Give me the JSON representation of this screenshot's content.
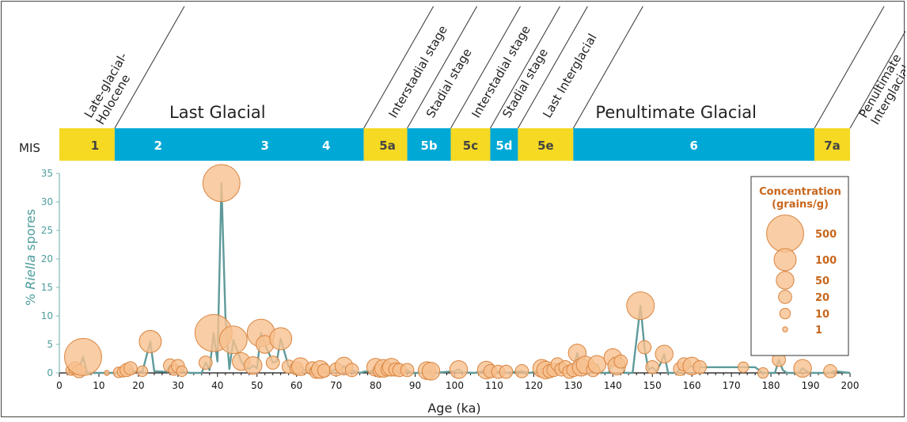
{
  "colors": {
    "glacial": "#00a8d6",
    "interglacial": "#f5d923",
    "curve": "#5f9a9a",
    "bubble_fill": "#f7c08e",
    "bubble_stroke": "#d9843f",
    "legend_text": "#c8661c"
  },
  "mis_label": "MIS",
  "header_labels": [
    {
      "text": "Last Glacial",
      "x": 40
    },
    {
      "text": "Penultimate Glacial",
      "x": 156
    }
  ],
  "diagonal_labels": [
    {
      "lines": [
        "Late-glacial-",
        "Holocene"
      ],
      "x": 8
    },
    {
      "lines": [
        "Interstadial stage"
      ],
      "x": 85
    },
    {
      "lines": [
        "Stadial stage"
      ],
      "x": 94.5
    },
    {
      "lines": [
        "Interstadial stage"
      ],
      "x": 106
    },
    {
      "lines": [
        "Stadial stage"
      ],
      "x": 113.8
    },
    {
      "lines": [
        "Last Interglacial"
      ],
      "x": 124
    },
    {
      "lines": [
        "Penultimate",
        "Interglacial"
      ],
      "x": 204
    }
  ],
  "mis_stages": [
    {
      "label": "1",
      "start": 0,
      "end": 14,
      "type": "interglacial",
      "text_at": 9
    },
    {
      "label": "2",
      "start": 14,
      "end": 77,
      "type": "glacial",
      "text_at": 25
    },
    {
      "label": "3",
      "start": 14,
      "end": 77,
      "type": "glacial",
      "text_at": 52,
      "no_rect": true
    },
    {
      "label": "4",
      "start": 14,
      "end": 77,
      "type": "glacial",
      "text_at": 67.5,
      "no_rect": true
    },
    {
      "label": "5a",
      "start": 77,
      "end": 88,
      "type": "interglacial",
      "text_at": 83
    },
    {
      "label": "5b",
      "start": 88,
      "end": 99,
      "type": "glacial",
      "text_at": 93.5
    },
    {
      "label": "5c",
      "start": 99,
      "end": 109,
      "type": "interglacial",
      "text_at": 104
    },
    {
      "label": "5d",
      "start": 109,
      "end": 116,
      "type": "glacial",
      "text_at": 112.5
    },
    {
      "label": "5e",
      "start": 116,
      "end": 130,
      "type": "interglacial",
      "text_at": 123
    },
    {
      "label": "6",
      "start": 130,
      "end": 191,
      "type": "glacial",
      "text_at": 160.5
    },
    {
      "label": "7a",
      "start": 191,
      "end": 200,
      "type": "interglacial",
      "text_at": 195.5
    }
  ],
  "chart_data": {
    "type": "line",
    "xlabel": "Age (ka)",
    "ylabel_prefix": "% ",
    "ylabel_italic": "Riella",
    "ylabel_suffix": " spores",
    "xlim": [
      0,
      200
    ],
    "ylim": [
      0,
      35
    ],
    "xticks": [
      0,
      10,
      20,
      30,
      40,
      50,
      60,
      70,
      80,
      90,
      100,
      110,
      120,
      130,
      140,
      150,
      160,
      170,
      180,
      190,
      200
    ],
    "yticks": [
      0,
      5,
      10,
      15,
      20,
      25,
      30,
      35
    ],
    "series": [
      {
        "points": [
          [
            4,
            0.2
          ],
          [
            5,
            0.8
          ],
          [
            6,
            2.8
          ],
          [
            7,
            0
          ],
          [
            11,
            0
          ],
          [
            15,
            0
          ],
          [
            16,
            0.1
          ],
          [
            17,
            0.3
          ],
          [
            18,
            0.8
          ],
          [
            19,
            0.2
          ],
          [
            21,
            0.2
          ],
          [
            23,
            5.5
          ],
          [
            24,
            0.3
          ],
          [
            27,
            0.2
          ],
          [
            28,
            1.3
          ],
          [
            29,
            0.5
          ],
          [
            30,
            1.2
          ],
          [
            31,
            0.3
          ],
          [
            33,
            0
          ],
          [
            36,
            0
          ],
          [
            37,
            1.8
          ],
          [
            38,
            0.5
          ],
          [
            39,
            7
          ],
          [
            40,
            2
          ],
          [
            41,
            33.3
          ],
          [
            42,
            10
          ],
          [
            43,
            0.7
          ],
          [
            44,
            5.8
          ],
          [
            46,
            2
          ],
          [
            47,
            1
          ],
          [
            48,
            0.7
          ],
          [
            49,
            1.3
          ],
          [
            50,
            0.8
          ],
          [
            51,
            7
          ],
          [
            52,
            5
          ],
          [
            53,
            3.5
          ],
          [
            54,
            1.8
          ],
          [
            55,
            2
          ],
          [
            56,
            6
          ],
          [
            57,
            3.5
          ],
          [
            58,
            1.1
          ],
          [
            59,
            0.8
          ],
          [
            60,
            0.8
          ],
          [
            61,
            1.1
          ],
          [
            62,
            0.4
          ],
          [
            63,
            0.5
          ],
          [
            64,
            0.8
          ],
          [
            65,
            0.2
          ],
          [
            66,
            0.6
          ],
          [
            67,
            0.4
          ],
          [
            68,
            0.2
          ],
          [
            69,
            0.4
          ],
          [
            70,
            0.6
          ],
          [
            71,
            0.4
          ],
          [
            72,
            1.2
          ],
          [
            73,
            0.3
          ],
          [
            74,
            0.5
          ],
          [
            75,
            0.2
          ],
          [
            76,
            0
          ],
          [
            77,
            0.2
          ],
          [
            78,
            0.3
          ],
          [
            79,
            0.3
          ],
          [
            80,
            1
          ],
          [
            81,
            0.4
          ],
          [
            82,
            0.8
          ],
          [
            83,
            0.6
          ],
          [
            84,
            1
          ],
          [
            85,
            0.6
          ],
          [
            86,
            0.5
          ],
          [
            87,
            0
          ],
          [
            88,
            0.5
          ],
          [
            89,
            0
          ],
          [
            92,
            0
          ],
          [
            93,
            0.4
          ],
          [
            94,
            0.3
          ],
          [
            95,
            0
          ],
          [
            100,
            0.3
          ],
          [
            101,
            0.6
          ],
          [
            102,
            0.1
          ],
          [
            105,
            0
          ],
          [
            107,
            0.3
          ],
          [
            108,
            0.5
          ],
          [
            109,
            0.3
          ],
          [
            110,
            0
          ],
          [
            111,
            0.2
          ],
          [
            112,
            0.2
          ],
          [
            113,
            0
          ],
          [
            117,
            0.3
          ],
          [
            118,
            0.1
          ],
          [
            119,
            0
          ],
          [
            121,
            0.3
          ],
          [
            122,
            0.8
          ],
          [
            123,
            0.5
          ],
          [
            124,
            0.3
          ],
          [
            125,
            0.5
          ],
          [
            126,
            1.5
          ],
          [
            127,
            0.6
          ],
          [
            128,
            1
          ],
          [
            129,
            0.2
          ],
          [
            130,
            0.5
          ],
          [
            131,
            3.5
          ],
          [
            132,
            1
          ],
          [
            133,
            1.4
          ],
          [
            134,
            0.1
          ],
          [
            135,
            0.5
          ],
          [
            136,
            1.5
          ],
          [
            137,
            0
          ],
          [
            139,
            0
          ],
          [
            140,
            2.7
          ],
          [
            141,
            1.2
          ],
          [
            142,
            2
          ],
          [
            143,
            0
          ],
          [
            145,
            0
          ],
          [
            147,
            11.8
          ],
          [
            148,
            4.5
          ],
          [
            149,
            0.5
          ],
          [
            150,
            1
          ],
          [
            151,
            0.3
          ],
          [
            152,
            1.5
          ],
          [
            153,
            3.3
          ],
          [
            154,
            0
          ],
          [
            156,
            0
          ],
          [
            157,
            0.7
          ],
          [
            158,
            1.5
          ],
          [
            159,
            1
          ],
          [
            160,
            1.2
          ],
          [
            161,
            1
          ],
          [
            162,
            1
          ],
          [
            173,
            1
          ],
          [
            176,
            1
          ],
          [
            178,
            0
          ],
          [
            181,
            0
          ],
          [
            182,
            2.3
          ],
          [
            183,
            0.5
          ],
          [
            184,
            0
          ],
          [
            187,
            0
          ],
          [
            188,
            0.8
          ],
          [
            189,
            0.3
          ],
          [
            190,
            0
          ],
          [
            195,
            0
          ],
          [
            196,
            0.3
          ],
          [
            200,
            0
          ]
        ]
      }
    ],
    "bubbles": [
      [
        3,
        0.5,
        10
      ],
      [
        4,
        0.8,
        20
      ],
      [
        5,
        0.3,
        20
      ],
      [
        6,
        2.8,
        500
      ],
      [
        12,
        0,
        1
      ],
      [
        15,
        0.1,
        10
      ],
      [
        16,
        0.2,
        10
      ],
      [
        17,
        0.5,
        20
      ],
      [
        18,
        0.8,
        20
      ],
      [
        21,
        0.3,
        10
      ],
      [
        23,
        5.5,
        100
      ],
      [
        28,
        1.3,
        20
      ],
      [
        29,
        0.5,
        10
      ],
      [
        30,
        1.2,
        20
      ],
      [
        31,
        0.3,
        10
      ],
      [
        37,
        1.8,
        20
      ],
      [
        39,
        7,
        500
      ],
      [
        41,
        33.3,
        500
      ],
      [
        44,
        5.8,
        200
      ],
      [
        46,
        2,
        50
      ],
      [
        49,
        1.3,
        50
      ],
      [
        51,
        7,
        200
      ],
      [
        52,
        5,
        50
      ],
      [
        54,
        1.8,
        20
      ],
      [
        56,
        6,
        100
      ],
      [
        58,
        1.1,
        20
      ],
      [
        60,
        0.8,
        20
      ],
      [
        61,
        1.1,
        50
      ],
      [
        64,
        0.8,
        20
      ],
      [
        65,
        0.2,
        20
      ],
      [
        66,
        0.6,
        50
      ],
      [
        67,
        0.4,
        20
      ],
      [
        70,
        0.6,
        20
      ],
      [
        72,
        1.2,
        50
      ],
      [
        74,
        0.5,
        20
      ],
      [
        80,
        1,
        50
      ],
      [
        81,
        0.4,
        20
      ],
      [
        82,
        0.8,
        50
      ],
      [
        83,
        0.6,
        20
      ],
      [
        84,
        1,
        50
      ],
      [
        85,
        0.6,
        20
      ],
      [
        86,
        0.5,
        20
      ],
      [
        88,
        0.5,
        20
      ],
      [
        93,
        0.4,
        50
      ],
      [
        94,
        0.3,
        50
      ],
      [
        101,
        0.6,
        50
      ],
      [
        108,
        0.5,
        50
      ],
      [
        109,
        0.3,
        20
      ],
      [
        111,
        0.2,
        20
      ],
      [
        113,
        0.2,
        20
      ],
      [
        117,
        0.3,
        20
      ],
      [
        122,
        0.8,
        50
      ],
      [
        123,
        0.5,
        50
      ],
      [
        124,
        0.3,
        20
      ],
      [
        125,
        0.5,
        20
      ],
      [
        126,
        1.5,
        20
      ],
      [
        127,
        0.6,
        20
      ],
      [
        128,
        1,
        20
      ],
      [
        129,
        0.2,
        20
      ],
      [
        130,
        0.5,
        20
      ],
      [
        131,
        3.5,
        50
      ],
      [
        132,
        1,
        50
      ],
      [
        133,
        1.4,
        50
      ],
      [
        135,
        0.5,
        20
      ],
      [
        136,
        1.5,
        50
      ],
      [
        140,
        2.7,
        50
      ],
      [
        141,
        1.2,
        50
      ],
      [
        142,
        2,
        20
      ],
      [
        147,
        11.8,
        200
      ],
      [
        148,
        4.5,
        20
      ],
      [
        150,
        1,
        20
      ],
      [
        153,
        3.3,
        50
      ],
      [
        157,
        0.7,
        20
      ],
      [
        158,
        1.5,
        20
      ],
      [
        160,
        1.2,
        50
      ],
      [
        162,
        1,
        20
      ],
      [
        173,
        1,
        10
      ],
      [
        178,
        0,
        10
      ],
      [
        182,
        2.3,
        20
      ],
      [
        188,
        0.8,
        50
      ],
      [
        195,
        0.3,
        20
      ]
    ],
    "legend": {
      "title_lines": [
        "Concentration",
        "(grains/g)"
      ],
      "entries": [
        {
          "label": "500",
          "value": 500
        },
        {
          "label": "100",
          "value": 100
        },
        {
          "label": "50",
          "value": 50
        },
        {
          "label": "20",
          "value": 20
        },
        {
          "label": "10",
          "value": 10
        },
        {
          "label": "1",
          "value": 1
        }
      ],
      "position": "top-right"
    },
    "grid": false
  }
}
